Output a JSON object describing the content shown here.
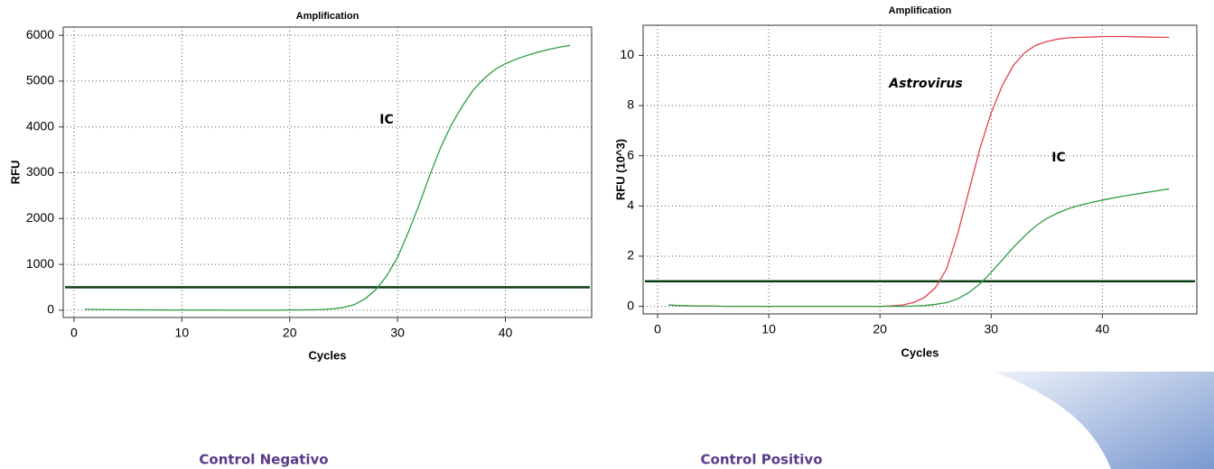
{
  "charts": [
    {
      "caption": "Control Negativo",
      "chart_data": {
        "type": "line",
        "title": "Amplification",
        "x_label": "Cycles",
        "y_label": "RFU",
        "x": [
          1,
          2,
          3,
          4,
          5,
          6,
          7,
          8,
          9,
          10,
          11,
          12,
          13,
          14,
          15,
          16,
          17,
          18,
          19,
          20,
          21,
          22,
          23,
          24,
          25,
          26,
          27,
          28,
          29,
          30,
          31,
          32,
          33,
          34,
          35,
          36,
          37,
          38,
          39,
          40,
          41,
          42,
          43,
          44,
          45,
          46
        ],
        "series": [
          {
            "name": "IC",
            "color": "#2e9e44",
            "values": [
              20,
              15,
              12,
              10,
              8,
              6,
              5,
              4,
              3,
              2,
              2,
              1,
              1,
              0,
              0,
              0,
              0,
              0,
              0,
              2,
              5,
              8,
              15,
              30,
              60,
              120,
              250,
              450,
              750,
              1150,
              1700,
              2300,
              2950,
              3550,
              4050,
              4450,
              4800,
              5050,
              5250,
              5380,
              5480,
              5560,
              5630,
              5690,
              5740,
              5780
            ]
          }
        ],
        "threshold": 500,
        "threshold_color": "#0b3d12",
        "xlim": [
          -1,
          48
        ],
        "ylim": [
          -160,
          6180
        ],
        "xticks": [
          0,
          10,
          20,
          30,
          40
        ],
        "yticks": [
          0,
          1000,
          2000,
          3000,
          4000,
          5000,
          6000
        ],
        "grid": true
      }
    },
    {
      "caption": "Control Positivo",
      "chart_data": {
        "type": "line",
        "title": "Amplification",
        "x_label": "Cycles",
        "y_label": "RFU (10^3)",
        "x": [
          1,
          2,
          3,
          4,
          5,
          6,
          7,
          8,
          9,
          10,
          11,
          12,
          13,
          14,
          15,
          16,
          17,
          18,
          19,
          20,
          21,
          22,
          23,
          24,
          25,
          26,
          27,
          28,
          29,
          30,
          31,
          32,
          33,
          34,
          35,
          36,
          37,
          38,
          39,
          40,
          41,
          42,
          43,
          44,
          45,
          46
        ],
        "series": [
          {
            "name": "Astrovirus",
            "color": "#e0424a",
            "values": [
              0.05,
              0.03,
              0.02,
              0.01,
              0.01,
              0,
              0,
              0,
              0,
              0,
              0,
              0,
              0,
              0,
              0,
              0,
              0,
              0,
              0,
              0,
              0.02,
              0.05,
              0.15,
              0.35,
              0.75,
              1.5,
              2.9,
              4.6,
              6.3,
              7.7,
              8.8,
              9.6,
              10.1,
              10.4,
              10.55,
              10.65,
              10.7,
              10.72,
              10.73,
              10.75,
              10.75,
              10.75,
              10.74,
              10.73,
              10.72,
              10.72
            ]
          },
          {
            "name": "IC",
            "color": "#2e9e44",
            "values": [
              0.05,
              0.03,
              0.02,
              0.01,
              0.01,
              0,
              0,
              0,
              0,
              0,
              0,
              0,
              0,
              0,
              0,
              0,
              0,
              0,
              0,
              0,
              0,
              0,
              0.01,
              0.03,
              0.08,
              0.15,
              0.3,
              0.55,
              0.9,
              1.35,
              1.85,
              2.35,
              2.8,
              3.2,
              3.5,
              3.72,
              3.9,
              4.03,
              4.14,
              4.23,
              4.32,
              4.4,
              4.47,
              4.54,
              4.61,
              4.68
            ]
          }
        ],
        "threshold": 1,
        "threshold_color": "#0b3d12",
        "xlim": [
          -1.3,
          48.5
        ],
        "ylim": [
          -0.3,
          11.2
        ],
        "xticks": [
          0,
          10,
          20,
          30,
          40
        ],
        "yticks": [
          0,
          2,
          4,
          6,
          8,
          10
        ],
        "grid": true
      }
    }
  ]
}
